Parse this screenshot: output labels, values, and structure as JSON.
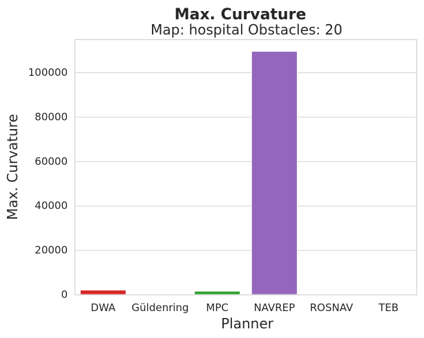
{
  "chart_data": {
    "type": "bar",
    "title": "Max. Curvature",
    "subtitle": "Map: hospital Obstacles: 20",
    "xlabel": "Planner",
    "ylabel": "Max. Curvature",
    "categories": [
      "DWA",
      "Güldenring",
      "MPC",
      "NAVREP",
      "ROSNAV",
      "TEB"
    ],
    "values": [
      2000,
      0,
      1500,
      109500,
      0,
      0
    ],
    "colors": [
      "#d62728",
      "#ff7f0e",
      "#2ca02c",
      "#9467bd",
      "#8c564b",
      "#e377c2"
    ],
    "ylim": [
      0,
      115000
    ],
    "yticks": [
      0,
      20000,
      40000,
      60000,
      80000,
      100000
    ],
    "grid": "horizontal",
    "legend": "none"
  }
}
